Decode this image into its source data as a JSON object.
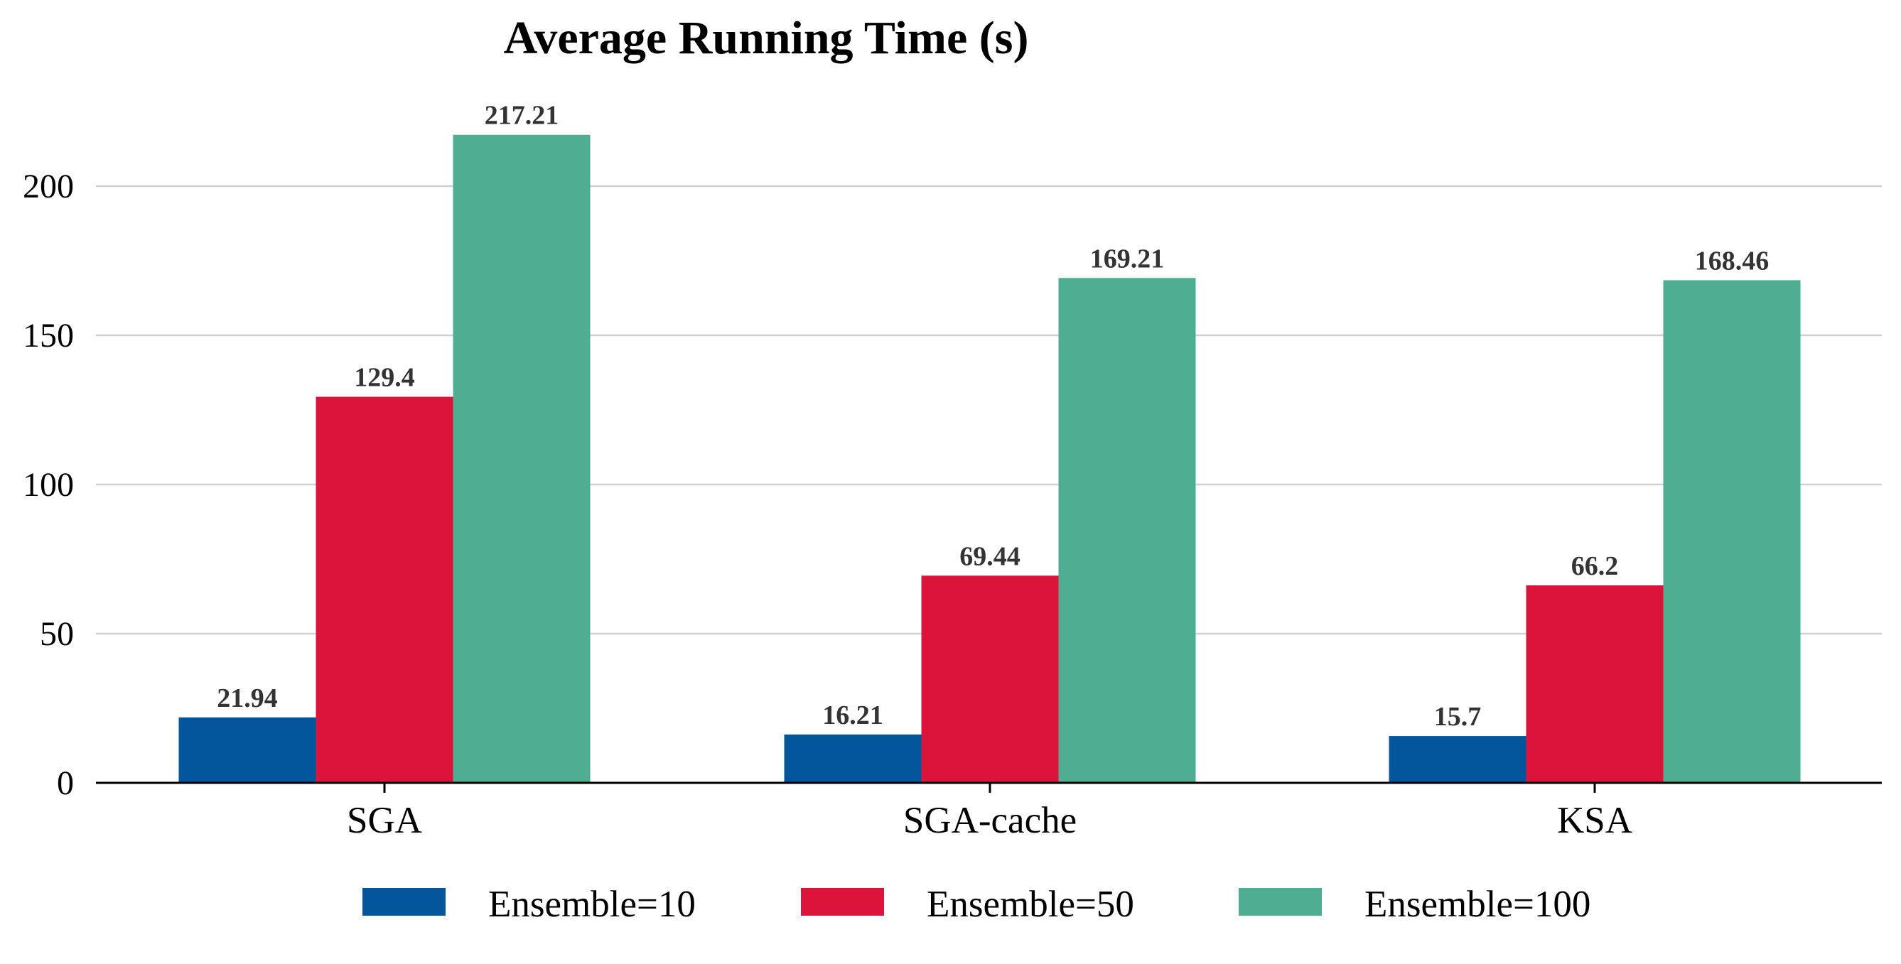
{
  "chart_data": {
    "type": "bar",
    "title": "Average Running Time (s)",
    "xlabel": "",
    "ylabel": "",
    "categories": [
      "SGA",
      "SGA-cache",
      "KSA"
    ],
    "series": [
      {
        "name": "Ensemble=10",
        "color": "#03569b",
        "values": [
          21.94,
          16.21,
          15.7
        ]
      },
      {
        "name": "Ensemble=50",
        "color": "#dc143c",
        "values": [
          129.4,
          69.44,
          66.2
        ]
      },
      {
        "name": "Ensemble=100",
        "color": "#4fae91",
        "values": [
          217.21,
          169.21,
          168.46
        ]
      }
    ],
    "data_labels": [
      [
        "21.94",
        "16.21",
        "15.7"
      ],
      [
        "129.4",
        "69.44",
        "66.2"
      ],
      [
        "217.21",
        "169.21",
        "168.46"
      ]
    ],
    "yticks": [
      0,
      50,
      100,
      150,
      200
    ],
    "ytick_labels": [
      "0",
      "50",
      "100",
      "150",
      "200"
    ],
    "ylim": [
      0,
      222
    ],
    "grid": "horizontal",
    "legend_position": "bottom-center"
  }
}
